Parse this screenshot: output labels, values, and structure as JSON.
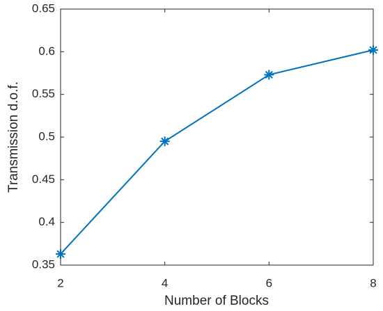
{
  "chart_data": {
    "type": "line",
    "xlabel": "Number of Blocks",
    "ylabel": "Transmission d.o.f.",
    "x": [
      2,
      4,
      6,
      8
    ],
    "series": [
      {
        "color": "#0072bd",
        "values": [
          0.363,
          0.495,
          0.573,
          0.602
        ]
      }
    ],
    "xlim": [
      2,
      8
    ],
    "xticks": [
      2,
      4,
      6,
      8
    ],
    "ylim": [
      0.35,
      0.65
    ],
    "yticks": [
      0.35,
      0.4,
      0.45,
      0.5,
      0.55,
      0.6,
      0.65
    ],
    "grid": false,
    "marker": "asterisk"
  }
}
